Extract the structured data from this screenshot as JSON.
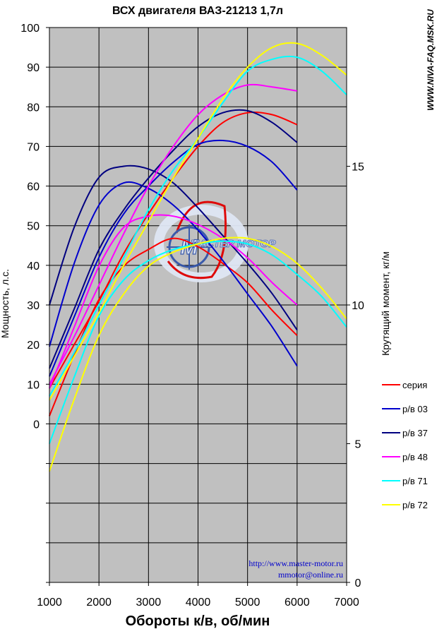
{
  "chart_data": {
    "type": "line",
    "title": "ВСХ двигателя ВАЗ-21213  1,7л",
    "xlabel": "Обороты к/в, об/мин",
    "ylabel": "Мощность, л.с.",
    "y2label": "Крутящий момент, кг/м",
    "xlim": [
      1000,
      7000
    ],
    "ylim": [
      -40,
      100
    ],
    "y2lim": [
      0,
      20
    ],
    "xticks": [
      1000,
      2000,
      3000,
      4000,
      5000,
      6000,
      7000
    ],
    "yticks": [
      0,
      10,
      20,
      30,
      40,
      50,
      60,
      70,
      80,
      90,
      100
    ],
    "y2ticks": [
      0,
      5,
      10,
      15
    ],
    "grid": true,
    "legend_position": "right",
    "series": [
      {
        "name": "серия",
        "color": "#ff0000",
        "power": {
          "x": [
            1000,
            1500,
            2000,
            2500,
            3000,
            3500,
            4000,
            4500,
            5000,
            5500,
            6000
          ],
          "y": [
            9,
            20,
            31,
            43,
            53,
            62,
            70,
            76,
            78.5,
            78,
            75.5
          ]
        },
        "torque": {
          "x": [
            1000,
            1500,
            2000,
            2500,
            3000,
            3500,
            4000,
            4500,
            5000,
            5500,
            6000
          ],
          "y": [
            6,
            8.2,
            10.2,
            11.4,
            12,
            12.4,
            12.1,
            11.5,
            10.8,
            9.8,
            8.9
          ]
        }
      },
      {
        "name": "р/в 03",
        "color": "#0000cc",
        "power": {
          "x": [
            1000,
            1500,
            2000,
            2500,
            3000,
            3500,
            4000,
            4500,
            5000,
            5500,
            6000
          ],
          "y": [
            12,
            27,
            42,
            53,
            60,
            66,
            70.5,
            71.5,
            70,
            66,
            59
          ]
        },
        "torque": {
          "x": [
            1000,
            1500,
            2000,
            2500,
            3000,
            3500,
            4000,
            4500,
            5000,
            5500,
            6000
          ],
          "y": [
            8.5,
            11.5,
            13.6,
            14.4,
            14.2,
            13.6,
            12.7,
            11.6,
            10.4,
            9.2,
            7.8
          ]
        }
      },
      {
        "name": "р/в 37",
        "color": "#000080",
        "power": {
          "x": [
            1000,
            1500,
            2000,
            2500,
            3000,
            3500,
            4000,
            4500,
            5000,
            5500,
            6000
          ],
          "y": [
            14,
            29,
            44,
            54,
            62,
            69,
            75,
            78.5,
            79,
            76,
            71
          ]
        },
        "torque": {
          "x": [
            1000,
            1500,
            2000,
            2500,
            3000,
            3500,
            4000,
            4500,
            5000,
            5500,
            6000
          ],
          "y": [
            10,
            12.8,
            14.6,
            15,
            14.9,
            14.4,
            13.5,
            12.5,
            11.5,
            10.4,
            9.1
          ]
        }
      },
      {
        "name": "р/в 48",
        "color": "#ff00ff",
        "power": {
          "x": [
            1000,
            1500,
            2000,
            2500,
            3000,
            3500,
            4000,
            4500,
            5000,
            5500,
            6000
          ],
          "y": [
            10,
            22,
            35,
            48,
            60,
            70,
            78,
            83,
            85.5,
            85,
            84
          ]
        },
        "torque": {
          "x": [
            1000,
            1500,
            2000,
            2500,
            3000,
            3500,
            4000,
            4500,
            5000,
            5500,
            6000
          ],
          "y": [
            7,
            9.2,
            11.4,
            12.8,
            13.2,
            13.2,
            12.9,
            12.4,
            11.7,
            10.8,
            10
          ]
        }
      },
      {
        "name": "р/в 71",
        "color": "#00ffff",
        "power": {
          "x": [
            1000,
            1500,
            2000,
            2500,
            3000,
            3500,
            4000,
            4500,
            5000,
            5500,
            6000,
            6500,
            7000
          ],
          "y": [
            7,
            18,
            30,
            42,
            54,
            64,
            72,
            81,
            89,
            92,
            92.5,
            89,
            83
          ]
        },
        "torque": {
          "x": [
            1000,
            1500,
            2000,
            2500,
            3000,
            3500,
            4000,
            4500,
            5000,
            5500,
            6000,
            6500,
            7000
          ],
          "y": [
            5,
            7.4,
            9.6,
            10.9,
            11.6,
            12,
            12.2,
            12.3,
            12.2,
            11.8,
            11.1,
            10.3,
            9.2
          ]
        }
      },
      {
        "name": "р/в 72",
        "color": "#ffff00",
        "power": {
          "x": [
            1000,
            1500,
            2000,
            2500,
            3000,
            3500,
            4000,
            4500,
            5000,
            5500,
            6000,
            6500,
            7000
          ],
          "y": [
            6,
            17,
            28,
            40,
            51,
            62,
            72,
            82,
            90,
            95,
            96,
            93,
            88
          ]
        },
        "torque": {
          "x": [
            1000,
            1500,
            2000,
            2500,
            3000,
            3500,
            4000,
            4500,
            5000,
            5500,
            6000,
            6500,
            7000
          ],
          "y": [
            4,
            6.6,
            8.9,
            10.4,
            11.4,
            11.9,
            12.2,
            12.4,
            12.4,
            12.1,
            11.5,
            10.6,
            9.5
          ]
        }
      }
    ]
  },
  "site_label": "WWW.NIVA-FAQ.MSK.RU",
  "web_url": "http://www.master-motor.ru",
  "email": "mmotor@online.ru",
  "logo_text": "МАСТЕР МОТОР"
}
